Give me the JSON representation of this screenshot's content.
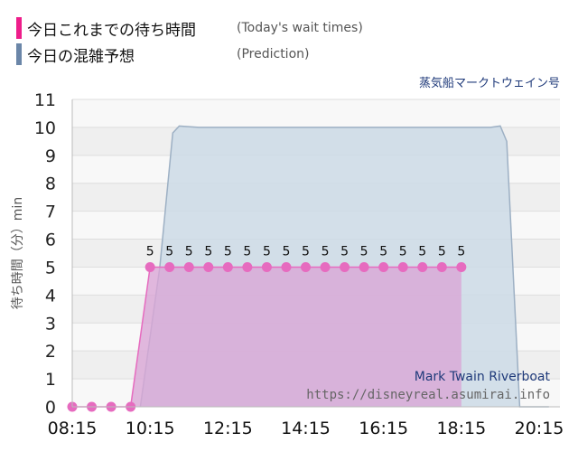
{
  "legend": {
    "actual": {
      "title": "今日これまでの待ち時間",
      "subtitle": "(Today's wait times)",
      "color": "#ee1d8a"
    },
    "prediction": {
      "title": "今日の混雑予想",
      "subtitle": "(Prediction)",
      "color": "#6b86a8"
    }
  },
  "attraction_name": "蒸気船マークトウェイン号",
  "watermark": {
    "name": "Mark Twain Riverboat",
    "url": "https://disneyreal.asumirai.info"
  },
  "chart_data": {
    "type": "area",
    "x_ticks": [
      "08:15",
      "10:15",
      "12:15",
      "14:15",
      "16:15",
      "18:15",
      "20:15"
    ],
    "y_ticks": [
      "0",
      "1",
      "2",
      "3",
      "4",
      "5",
      "6",
      "7",
      "8",
      "9",
      "10",
      "11"
    ],
    "ylabel": "待ち時間（分）min",
    "ylim": [
      0,
      11
    ],
    "xlim": [
      "08:15",
      "20:30"
    ],
    "grid": true,
    "series": [
      {
        "name": "今日これまでの待ち時間",
        "kind": "area-with-markers",
        "color": "#e66bbf",
        "fill": "#d9a6d6",
        "data_labels_from": "10:45",
        "points": [
          [
            "08:15",
            0
          ],
          [
            "08:45",
            0
          ],
          [
            "09:15",
            0
          ],
          [
            "09:45",
            0
          ],
          [
            "10:15",
            5
          ],
          [
            "10:45",
            5
          ],
          [
            "11:15",
            5
          ],
          [
            "11:45",
            5
          ],
          [
            "12:15",
            5
          ],
          [
            "12:45",
            5
          ],
          [
            "13:15",
            5
          ],
          [
            "13:45",
            5
          ],
          [
            "14:15",
            5
          ],
          [
            "14:45",
            5
          ],
          [
            "15:15",
            5
          ],
          [
            "15:45",
            5
          ],
          [
            "16:15",
            5
          ],
          [
            "16:45",
            5
          ],
          [
            "17:15",
            5
          ],
          [
            "17:45",
            5
          ],
          [
            "18:15",
            5
          ]
        ]
      },
      {
        "name": "今日の混雑予想",
        "kind": "area",
        "color": "#9db0c4",
        "fill": "#cddbe6",
        "points": [
          [
            "10:00",
            0
          ],
          [
            "10:30",
            5
          ],
          [
            "10:50",
            9.8
          ],
          [
            "11:00",
            10.05
          ],
          [
            "11:30",
            10
          ],
          [
            "19:00",
            10
          ],
          [
            "19:15",
            10.05
          ],
          [
            "19:25",
            9.5
          ],
          [
            "19:45",
            0
          ],
          [
            "20:30",
            0
          ]
        ]
      }
    ]
  }
}
